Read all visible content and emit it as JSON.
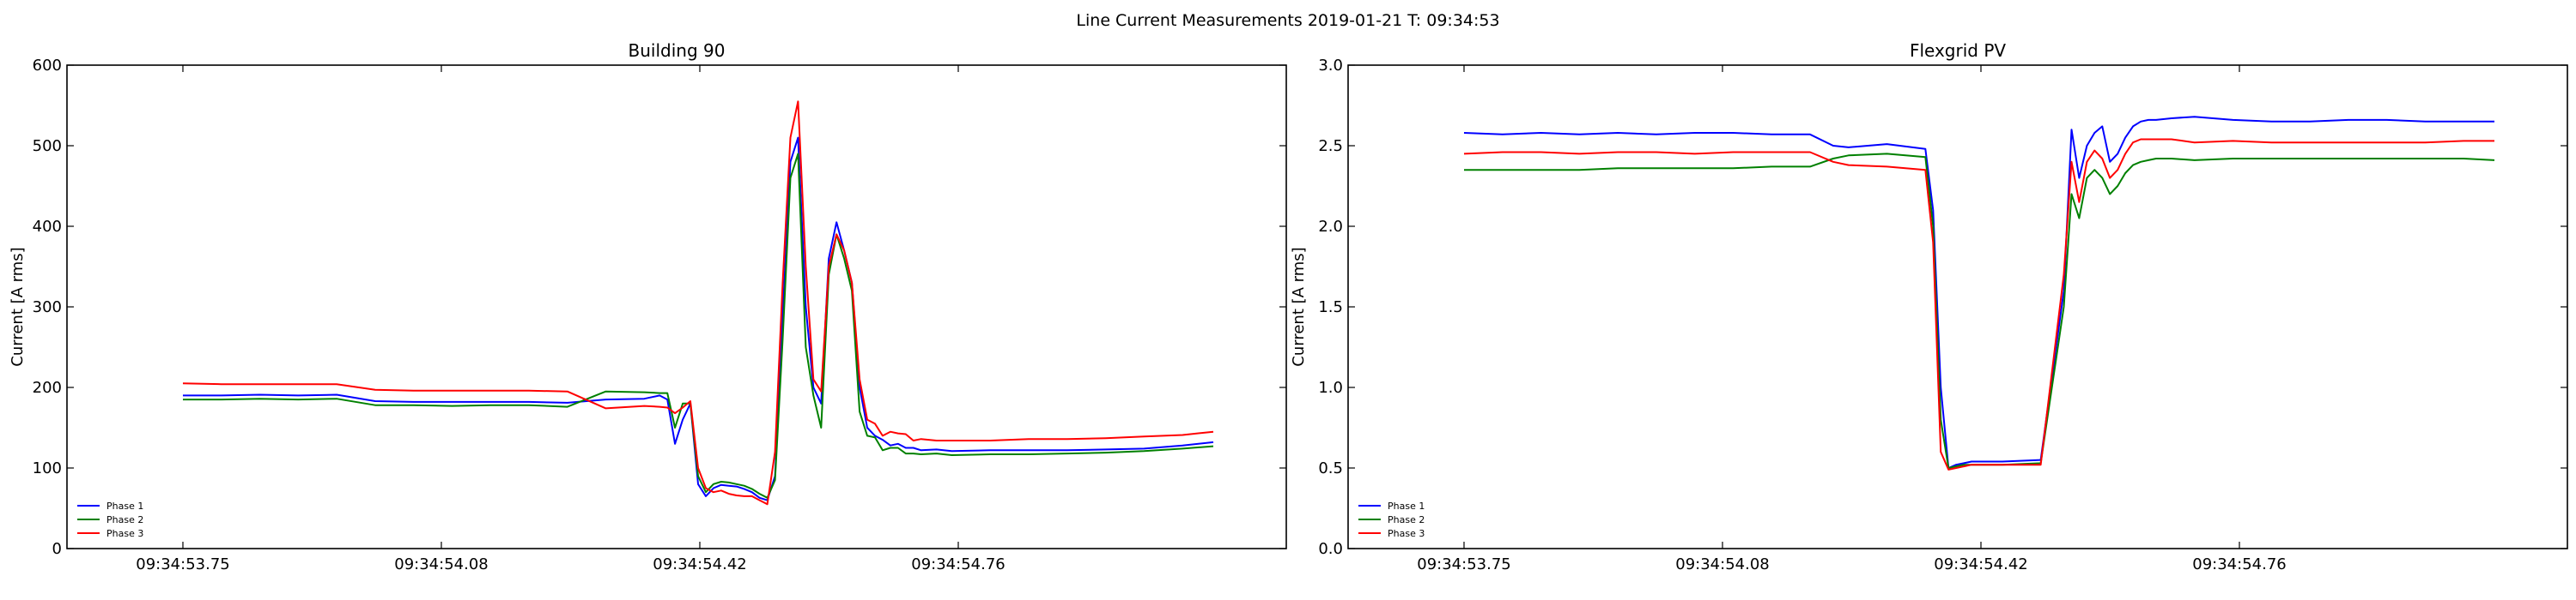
{
  "figure": {
    "suptitle": "Line Current Measurements 2019-01-21 T: 09:34:53"
  },
  "chart_data": [
    {
      "type": "line",
      "title": "Building 90",
      "xlabel": "",
      "ylabel": "Current [A rms]",
      "ylim": [
        0,
        600
      ],
      "yticks": [
        0,
        100,
        200,
        300,
        400,
        500,
        600
      ],
      "xticks": [
        "09:34:53.75",
        "09:34:54.08",
        "09:34:54.42",
        "09:34:54.76"
      ],
      "legend": "lower-left",
      "series": [
        {
          "name": "Phase 1",
          "color": "#0000ff",
          "x": [
            0,
            5,
            10,
            15,
            20,
            25,
            30,
            35,
            40,
            45,
            50,
            55,
            60,
            62,
            63,
            64,
            65,
            66,
            67,
            68,
            69,
            70,
            71,
            72,
            73,
            74,
            75,
            76,
            77,
            78,
            79,
            80,
            81,
            82,
            83,
            84,
            85,
            86,
            87,
            88,
            89,
            90,
            91,
            92,
            93,
            94,
            95,
            96,
            98,
            100,
            105,
            110,
            115,
            120,
            125,
            130,
            134
          ],
          "values": [
            190,
            190,
            191,
            190,
            191,
            183,
            182,
            182,
            182,
            182,
            181,
            185,
            186,
            190,
            185,
            130,
            160,
            180,
            80,
            65,
            75,
            79,
            78,
            77,
            74,
            70,
            63,
            60,
            90,
            290,
            480,
            510,
            300,
            200,
            180,
            360,
            405,
            370,
            330,
            200,
            150,
            140,
            135,
            128,
            130,
            125,
            125,
            122,
            123,
            121,
            122,
            122,
            122,
            123,
            124,
            128,
            132
          ]
        },
        {
          "name": "Phase 2",
          "color": "#008000",
          "x": [
            0,
            5,
            10,
            15,
            20,
            25,
            30,
            35,
            40,
            45,
            50,
            55,
            60,
            62,
            63,
            64,
            65,
            66,
            67,
            68,
            69,
            70,
            71,
            72,
            73,
            74,
            75,
            76,
            77,
            78,
            79,
            80,
            81,
            82,
            83,
            84,
            85,
            86,
            87,
            88,
            89,
            90,
            91,
            92,
            93,
            94,
            95,
            96,
            98,
            100,
            105,
            110,
            115,
            120,
            125,
            130,
            134
          ],
          "values": [
            185,
            185,
            186,
            185,
            186,
            178,
            178,
            177,
            178,
            178,
            176,
            195,
            194,
            193,
            193,
            150,
            180,
            180,
            90,
            70,
            80,
            83,
            82,
            80,
            78,
            74,
            68,
            63,
            85,
            260,
            460,
            490,
            250,
            190,
            150,
            340,
            390,
            360,
            320,
            170,
            140,
            138,
            122,
            125,
            125,
            118,
            118,
            117,
            118,
            116,
            117,
            117,
            118,
            119,
            121,
            124,
            127
          ]
        },
        {
          "name": "Phase 3",
          "color": "#ff0000",
          "x": [
            0,
            5,
            10,
            15,
            20,
            25,
            30,
            35,
            40,
            45,
            50,
            55,
            60,
            62,
            63,
            64,
            65,
            66,
            67,
            68,
            69,
            70,
            71,
            72,
            73,
            74,
            75,
            76,
            77,
            78,
            79,
            80,
            81,
            82,
            83,
            84,
            85,
            86,
            87,
            88,
            89,
            90,
            91,
            92,
            93,
            94,
            95,
            96,
            98,
            100,
            105,
            110,
            115,
            120,
            125,
            130,
            134
          ],
          "values": [
            205,
            204,
            204,
            204,
            204,
            197,
            196,
            196,
            196,
            196,
            195,
            174,
            177,
            176,
            175,
            168,
            175,
            183,
            100,
            75,
            70,
            72,
            68,
            66,
            65,
            65,
            60,
            55,
            120,
            330,
            510,
            555,
            350,
            210,
            195,
            350,
            390,
            370,
            330,
            210,
            160,
            155,
            140,
            145,
            143,
            142,
            134,
            136,
            134,
            134,
            134,
            136,
            136,
            137,
            139,
            141,
            145
          ]
        }
      ]
    },
    {
      "type": "line",
      "title": "Flexgrid PV",
      "xlabel": "",
      "ylabel": "Current [A rms]",
      "ylim": [
        0,
        3.0
      ],
      "yticks": [
        "0.0",
        "0.5",
        "1.0",
        "1.5",
        "2.0",
        "2.5",
        "3.0"
      ],
      "xticks": [
        "09:34:53.75",
        "09:34:54.08",
        "09:34:54.42",
        "09:34:54.76"
      ],
      "legend": "lower-left",
      "series": [
        {
          "name": "Phase 1",
          "color": "#0000ff",
          "x": [
            0,
            5,
            10,
            15,
            20,
            25,
            30,
            35,
            40,
            45,
            48,
            50,
            55,
            60,
            61,
            62,
            63,
            64,
            65,
            66,
            70,
            75,
            78,
            79,
            80,
            81,
            82,
            83,
            84,
            85,
            86,
            87,
            88,
            89,
            90,
            92,
            95,
            100,
            105,
            110,
            115,
            120,
            125,
            130,
            134
          ],
          "values": [
            2.58,
            2.57,
            2.58,
            2.57,
            2.58,
            2.57,
            2.58,
            2.58,
            2.57,
            2.57,
            2.5,
            2.49,
            2.51,
            2.48,
            2.1,
            1.0,
            0.5,
            0.52,
            0.53,
            0.54,
            0.54,
            0.55,
            1.6,
            2.6,
            2.3,
            2.5,
            2.58,
            2.62,
            2.4,
            2.45,
            2.55,
            2.62,
            2.65,
            2.66,
            2.66,
            2.67,
            2.68,
            2.66,
            2.65,
            2.65,
            2.66,
            2.66,
            2.65,
            2.65,
            2.65
          ]
        },
        {
          "name": "Phase 2",
          "color": "#008000",
          "x": [
            0,
            5,
            10,
            15,
            20,
            25,
            30,
            35,
            40,
            45,
            48,
            50,
            55,
            60,
            61,
            62,
            63,
            64,
            65,
            66,
            70,
            75,
            78,
            79,
            80,
            81,
            82,
            83,
            84,
            85,
            86,
            87,
            88,
            89,
            90,
            92,
            95,
            100,
            105,
            110,
            115,
            120,
            125,
            130,
            134
          ],
          "values": [
            2.35,
            2.35,
            2.35,
            2.35,
            2.36,
            2.36,
            2.36,
            2.36,
            2.37,
            2.37,
            2.42,
            2.44,
            2.45,
            2.43,
            2.0,
            0.8,
            0.5,
            0.51,
            0.52,
            0.52,
            0.52,
            0.53,
            1.5,
            2.2,
            2.05,
            2.3,
            2.35,
            2.3,
            2.2,
            2.25,
            2.33,
            2.38,
            2.4,
            2.41,
            2.42,
            2.42,
            2.41,
            2.42,
            2.42,
            2.42,
            2.42,
            2.42,
            2.42,
            2.42,
            2.41
          ]
        },
        {
          "name": "Phase 3",
          "color": "#ff0000",
          "x": [
            0,
            5,
            10,
            15,
            20,
            25,
            30,
            35,
            40,
            45,
            48,
            50,
            55,
            60,
            61,
            62,
            63,
            64,
            65,
            66,
            70,
            75,
            78,
            79,
            80,
            81,
            82,
            83,
            84,
            85,
            86,
            87,
            88,
            89,
            90,
            92,
            95,
            100,
            105,
            110,
            115,
            120,
            125,
            130,
            134
          ],
          "values": [
            2.45,
            2.46,
            2.46,
            2.45,
            2.46,
            2.46,
            2.45,
            2.46,
            2.46,
            2.46,
            2.4,
            2.38,
            2.37,
            2.35,
            1.9,
            0.6,
            0.49,
            0.5,
            0.51,
            0.52,
            0.52,
            0.52,
            1.7,
            2.4,
            2.15,
            2.4,
            2.47,
            2.42,
            2.3,
            2.35,
            2.45,
            2.52,
            2.54,
            2.54,
            2.54,
            2.54,
            2.52,
            2.53,
            2.52,
            2.52,
            2.52,
            2.52,
            2.52,
            2.53,
            2.53
          ]
        }
      ]
    }
  ]
}
